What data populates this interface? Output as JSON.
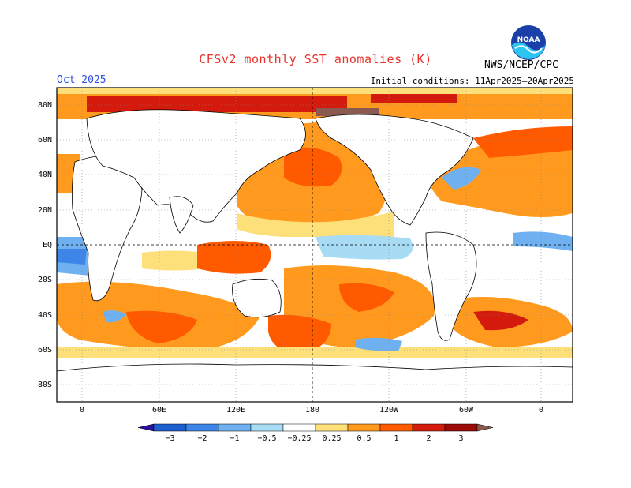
{
  "header": {
    "title": "CFSv2 monthly SST anomalies (K)",
    "month": "Oct 2025",
    "initial_conditions": "Initial conditions: 11Apr2025–20Apr2025",
    "org": "NWS/NCEP/CPC",
    "logo_text": "NOAA"
  },
  "map": {
    "lat_labels": [
      "80N",
      "60N",
      "40N",
      "20N",
      "EQ",
      "20S",
      "40S",
      "60S",
      "80S"
    ],
    "lon_labels": [
      "0",
      "60E",
      "120E",
      "180",
      "120W",
      "60W",
      "0"
    ],
    "projection": "cylindrical equidistant",
    "grid": true
  },
  "colorbar": {
    "tick_labels": [
      "−3",
      "−2",
      "−1",
      "−0.5",
      "−0.25",
      "0.25",
      "0.5",
      "1",
      "2",
      "3"
    ],
    "colors": [
      "#2a10a0",
      "#1e5fd0",
      "#3d86e8",
      "#6fb0f0",
      "#a8dcf5",
      "#ffffff",
      "#fde07a",
      "#ff9a1e",
      "#ff5a00",
      "#d41a0c",
      "#9b0a06",
      "#8a5a50"
    ]
  },
  "colors": {
    "title": "#e8322a",
    "month": "#3050e0",
    "warm_weak": "#fde07a",
    "warm_mod": "#ff9a1e",
    "warm_strong": "#ff5a00",
    "warm_vstrong": "#d41a0c",
    "cool_weak": "#a8dcf5",
    "cool_mod": "#6fb0f0"
  }
}
